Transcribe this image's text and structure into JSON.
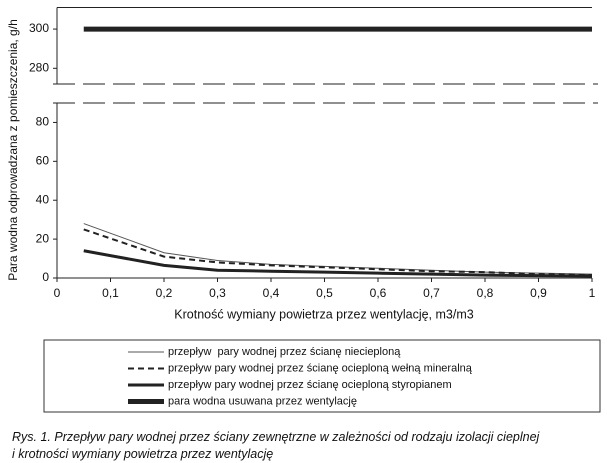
{
  "chart_data": {
    "type": "line",
    "y_label": "Para wodna odprowadzana z pomieszczenia, g/h",
    "x_label": "Krotność wymiany powietrza przez wentylację, m3/m3",
    "x": [
      0.05,
      0.2,
      0.3,
      0.4,
      0.5,
      0.6,
      0.7,
      0.8,
      0.9,
      1.0
    ],
    "series": [
      {
        "name": "przepływ  pary wodnej przez ścianę niecieploną",
        "color": "#555555",
        "values": [
          28,
          13,
          9,
          7,
          6,
          5,
          4,
          3,
          2.5,
          2
        ]
      },
      {
        "name": "przepływ pary wodnej przez ścianę ocieploną wełną mineralną",
        "color": "#222222",
        "values": [
          25,
          11,
          8,
          6.5,
          5.5,
          4.5,
          3.5,
          3,
          2,
          1.5
        ]
      },
      {
        "name": "przepływ pary wodnej przez ścianę ocieploną styropianem",
        "color": "#222222",
        "values": [
          14,
          6.5,
          4,
          3.5,
          3,
          2.5,
          2,
          1.5,
          1.2,
          1
        ]
      },
      {
        "name": "para wodna usuwana przez wentylację",
        "color": "#222222",
        "values": [
          300,
          300,
          300,
          300,
          300,
          300,
          300,
          300,
          300,
          300
        ]
      }
    ],
    "xlim": [
      0,
      1
    ],
    "xticks": [
      0,
      {
        "value": 0.1,
        "label": "0,1"
      },
      {
        "value": 0.2,
        "label": "0,2"
      },
      {
        "value": 0.3,
        "label": "0,3"
      },
      {
        "value": 0.4,
        "label": "0,4"
      },
      {
        "value": 0.5,
        "label": "0,5"
      },
      {
        "value": 0.6,
        "label": "0,6"
      },
      {
        "value": 0.7,
        "label": "0,7"
      },
      {
        "value": 0.8,
        "label": "0,8"
      },
      {
        "value": 0.9,
        "label": "0,9"
      },
      1
    ],
    "ylim": [
      0,
      90
    ],
    "yticks": [
      0,
      20,
      40,
      60,
      80
    ],
    "ylim_upper": [
      272,
      311
    ],
    "yticks_upper": [
      280,
      300
    ],
    "legend": "bottom"
  },
  "caption": [
    "Rys. 1. Przepływ pary wodnej przez ściany zewnętrzne w zależności od rodzaju izolacji cieplnej",
    "i krotności wymiany powietrza przez wentylację"
  ]
}
